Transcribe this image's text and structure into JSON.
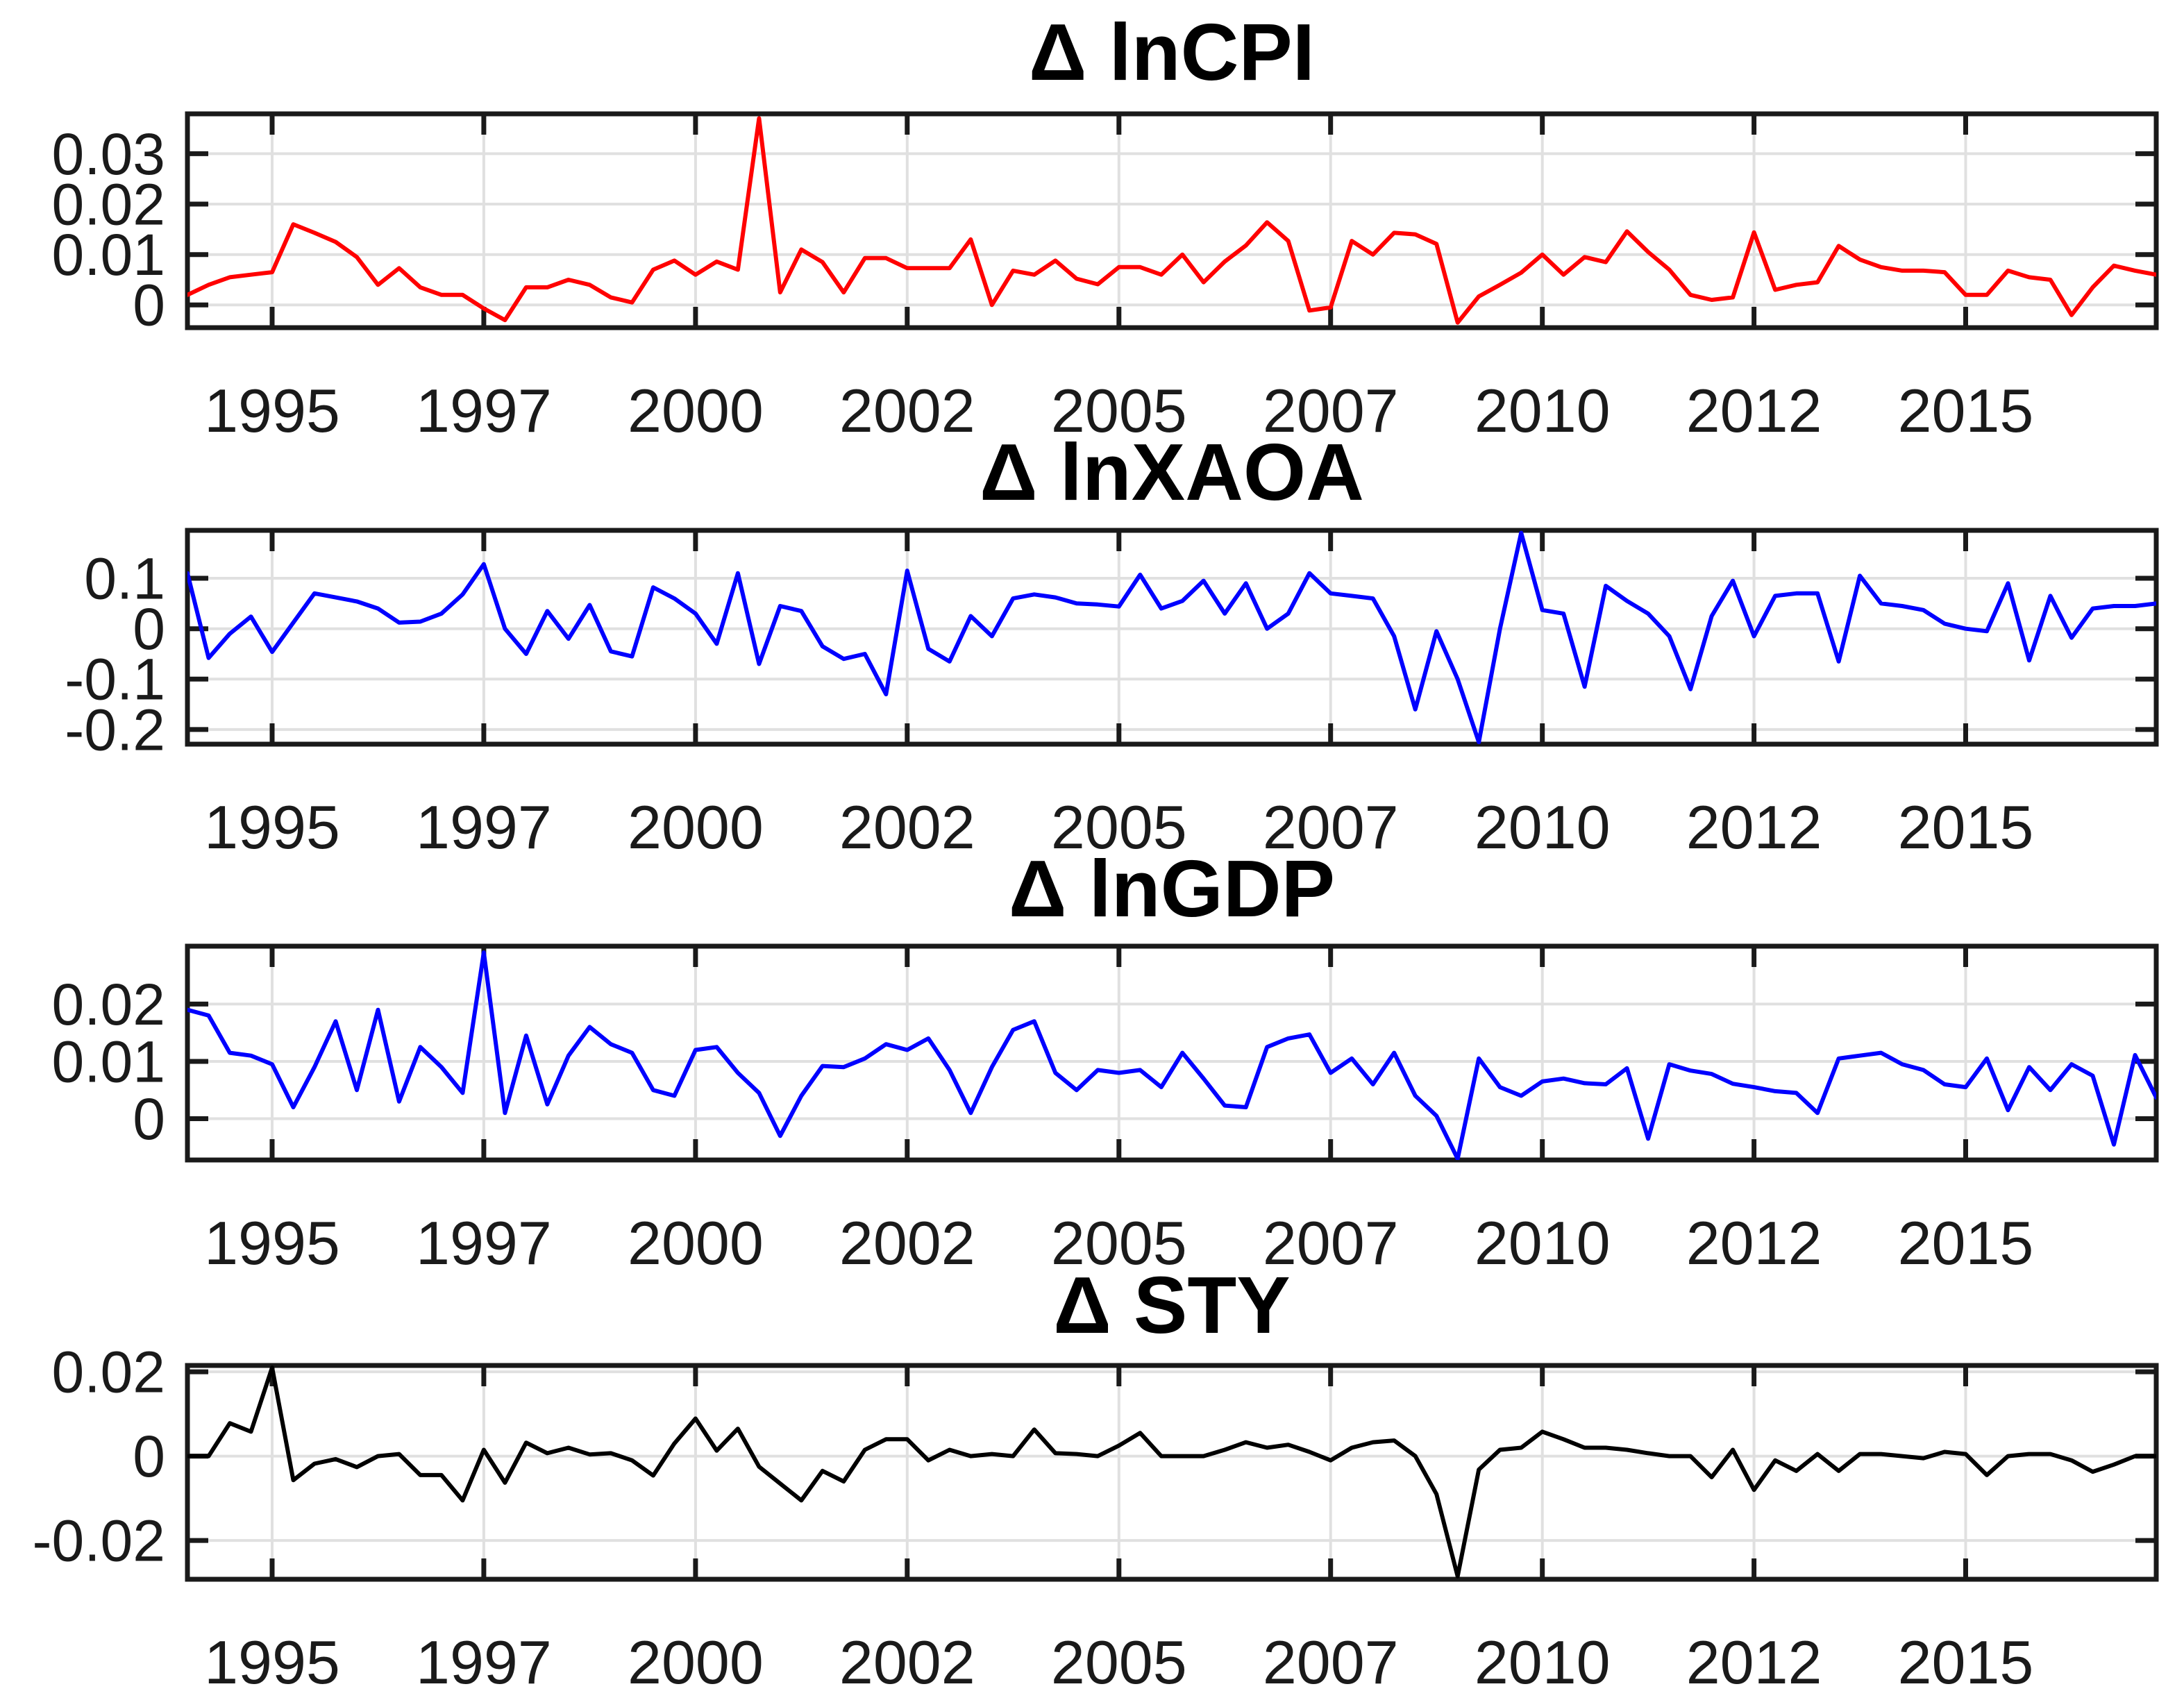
{
  "background": "#ffffff",
  "grid_color": "#e0e0e0",
  "axis_color": "#1a1a1a",
  "tick_label_color": "#1a1a1a",
  "chart_data": [
    {
      "type": "line",
      "title": "Δ lnCPI",
      "color": "#ff0000",
      "x_tick_labels": [
        "1995",
        "1997",
        "2000",
        "2002",
        "2005",
        "2007",
        "2010",
        "2012",
        "2015"
      ],
      "x_tick_positions": [
        5,
        15,
        25,
        35,
        45,
        55,
        65,
        75,
        85
      ],
      "x_range": [
        1,
        94
      ],
      "n_points": 94,
      "ylim": [
        -0.0045,
        0.0379
      ],
      "yticks": [
        0.03,
        0.02,
        0.01,
        0
      ],
      "ytick_labels": [
        "0.03",
        "0.02",
        "0.01",
        "0"
      ],
      "grid": true,
      "values": [
        0.002,
        0.004,
        0.0055,
        0.006,
        0.0065,
        0.016,
        0.0143,
        0.0125,
        0.0095,
        0.004,
        0.0073,
        0.0035,
        0.002,
        0.002,
        -0.0007,
        -0.003,
        0.0035,
        0.0035,
        0.005,
        0.004,
        0.0015,
        0.0005,
        0.007,
        0.0088,
        0.006,
        0.0086,
        0.007,
        0.037,
        0.0025,
        0.011,
        0.0085,
        0.0025,
        0.0093,
        0.0093,
        0.0073,
        0.0073,
        0.0073,
        0.013,
        0.0,
        0.0068,
        0.006,
        0.0088,
        0.0052,
        0.0041,
        0.0075,
        0.0075,
        0.006,
        0.01,
        0.0045,
        0.0086,
        0.0118,
        0.0164,
        0.0127,
        -0.0011,
        -0.0005,
        0.0127,
        0.01,
        0.0143,
        0.014,
        0.0121,
        -0.0035,
        0.0017,
        0.004,
        0.0064,
        0.01,
        0.006,
        0.0095,
        0.0085,
        0.0146,
        0.0105,
        0.007,
        0.002,
        0.001,
        0.0015,
        0.0144,
        0.003,
        0.004,
        0.0045,
        0.0117,
        0.009,
        0.0075,
        0.0068,
        0.0068,
        0.0065,
        0.002,
        0.002,
        0.0068,
        0.0055,
        0.005,
        -0.002,
        0.0035,
        0.0078,
        0.0068,
        0.006
      ]
    },
    {
      "type": "line",
      "title": "Δ lnXAOA",
      "color": "#0000ff",
      "x_tick_labels": [
        "1995",
        "1997",
        "2000",
        "2002",
        "2005",
        "2007",
        "2010",
        "2012",
        "2015"
      ],
      "x_tick_positions": [
        5,
        15,
        25,
        35,
        45,
        55,
        65,
        75,
        85
      ],
      "x_range": [
        1,
        94
      ],
      "n_points": 94,
      "ylim": [
        -0.229,
        0.195
      ],
      "yticks": [
        0.1,
        0,
        -0.1,
        -0.2
      ],
      "ytick_labels": [
        "0.1",
        "0",
        "-0.1",
        "-0.2"
      ],
      "grid": true,
      "values": [
        0.11,
        -0.058,
        -0.01,
        0.024,
        -0.046,
        0.012,
        0.07,
        0.062,
        0.054,
        0.04,
        0.012,
        0.014,
        0.03,
        0.068,
        0.128,
        0.0,
        -0.05,
        0.035,
        -0.02,
        0.047,
        -0.045,
        -0.055,
        0.082,
        0.06,
        0.03,
        -0.03,
        0.11,
        -0.07,
        0.045,
        0.035,
        -0.035,
        -0.06,
        -0.05,
        -0.13,
        0.115,
        -0.04,
        -0.065,
        0.025,
        -0.015,
        0.06,
        0.068,
        0.062,
        0.05,
        0.048,
        0.044,
        0.107,
        0.04,
        0.055,
        0.095,
        0.03,
        0.09,
        0.0,
        0.03,
        0.11,
        0.07,
        0.065,
        0.06,
        -0.015,
        -0.16,
        -0.005,
        -0.1,
        -0.225,
        0.0,
        0.19,
        0.037,
        0.03,
        -0.115,
        0.085,
        0.055,
        0.03,
        -0.015,
        -0.12,
        0.025,
        0.095,
        -0.015,
        0.065,
        0.07,
        0.07,
        -0.065,
        0.105,
        0.05,
        0.045,
        0.037,
        0.01,
        0.0,
        -0.005,
        0.09,
        -0.063,
        0.065,
        -0.018,
        0.04,
        0.045,
        0.045,
        0.05
      ]
    },
    {
      "type": "line",
      "title": "Δ lnGDP",
      "color": "#0000ff",
      "x_tick_labels": [
        "1995",
        "1997",
        "2000",
        "2002",
        "2005",
        "2007",
        "2010",
        "2012",
        "2015"
      ],
      "x_tick_positions": [
        5,
        15,
        25,
        35,
        45,
        55,
        65,
        75,
        85
      ],
      "x_range": [
        1,
        94
      ],
      "n_points": 94,
      "ylim": [
        -0.0072,
        0.0301
      ],
      "yticks": [
        0.02,
        0.01,
        0
      ],
      "ytick_labels": [
        "0.02",
        "0.01",
        "0"
      ],
      "grid": true,
      "values": [
        0.019,
        0.018,
        0.0115,
        0.011,
        0.0095,
        0.002,
        0.009,
        0.017,
        0.005,
        0.019,
        0.003,
        0.0125,
        0.009,
        0.0045,
        0.029,
        0.001,
        0.0145,
        0.0025,
        0.011,
        0.016,
        0.013,
        0.0115,
        0.005,
        0.004,
        0.012,
        0.0125,
        0.008,
        0.0045,
        -0.003,
        0.004,
        0.0092,
        0.009,
        0.0105,
        0.013,
        0.012,
        0.014,
        0.0085,
        0.001,
        0.009,
        0.0155,
        0.017,
        0.008,
        0.005,
        0.0085,
        0.008,
        0.0085,
        0.0055,
        0.0115,
        0.007,
        0.0023,
        0.002,
        0.0125,
        0.014,
        0.0147,
        0.008,
        0.0105,
        0.006,
        0.0115,
        0.004,
        0.0005,
        -0.007,
        0.0105,
        0.0055,
        0.004,
        0.0065,
        0.007,
        0.0062,
        0.006,
        0.0088,
        -0.0035,
        0.0095,
        0.0084,
        0.0078,
        0.0061,
        0.0055,
        0.0048,
        0.0045,
        0.001,
        0.0105,
        0.011,
        0.0115,
        0.0095,
        0.0085,
        0.006,
        0.0055,
        0.0105,
        0.0015,
        0.009,
        0.005,
        0.0095,
        0.0075,
        -0.0045,
        0.0111,
        0.0037
      ]
    },
    {
      "type": "line",
      "title": "Δ STY",
      "color": "#000000",
      "x_tick_labels": [
        "1995",
        "1997",
        "2000",
        "2002",
        "2005",
        "2007",
        "2010",
        "2012",
        "2015"
      ],
      "x_tick_positions": [
        5,
        15,
        25,
        35,
        45,
        55,
        65,
        75,
        85
      ],
      "x_range": [
        1,
        94
      ],
      "n_points": 94,
      "ylim": [
        -0.0292,
        0.0215
      ],
      "yticks": [
        0.02,
        0,
        -0.02
      ],
      "ytick_labels": [
        "0.02",
        "0",
        "-0.02"
      ],
      "grid": true,
      "values": [
        0.0,
        0.0,
        0.0078,
        0.0058,
        0.021,
        -0.0057,
        -0.0018,
        -0.0007,
        -0.0026,
        0.0,
        0.0005,
        -0.0045,
        -0.0045,
        -0.0105,
        0.0015,
        -0.0063,
        0.0032,
        0.0007,
        0.002,
        0.0004,
        0.0007,
        -0.001,
        -0.0046,
        0.003,
        0.0089,
        0.0013,
        0.0065,
        -0.0025,
        -0.0065,
        -0.0105,
        -0.0035,
        -0.006,
        0.0015,
        0.004,
        0.004,
        -0.001,
        0.0015,
        0.0,
        0.0005,
        0.0,
        0.0063,
        0.0007,
        0.0005,
        0.0,
        0.0025,
        0.0055,
        0.0,
        0.0,
        0.0,
        0.0015,
        0.0033,
        0.002,
        0.0027,
        0.001,
        -0.001,
        0.002,
        0.0033,
        0.0037,
        0.0,
        -0.009,
        -0.0285,
        -0.0032,
        0.0015,
        0.002,
        0.0058,
        0.004,
        0.002,
        0.002,
        0.0015,
        0.0007,
        0.0,
        0.0,
        -0.005,
        0.0015,
        -0.008,
        -0.001,
        -0.0035,
        0.0005,
        -0.0035,
        0.0005,
        0.0005,
        0.0,
        -0.0005,
        0.001,
        0.0005,
        -0.0045,
        0.0,
        0.0005,
        0.0005,
        -0.001,
        -0.0037,
        -0.002,
        0.0,
        0.0
      ]
    }
  ]
}
